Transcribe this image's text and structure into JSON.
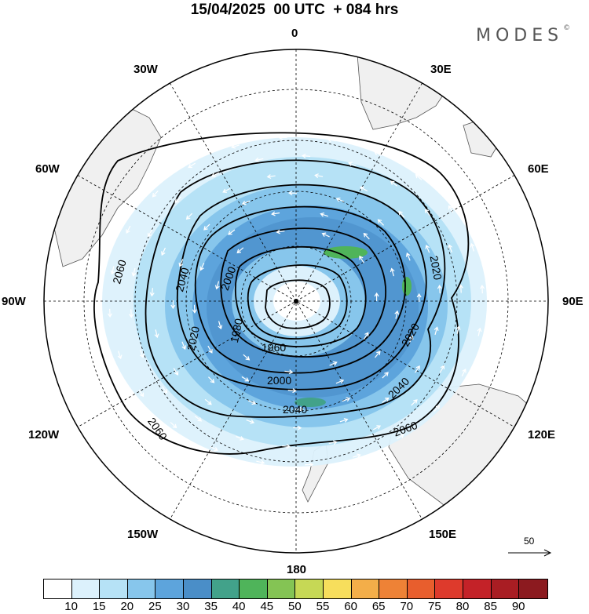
{
  "header": {
    "title": "15/04/2025  00 UTC  + 084 hrs",
    "brand": "MODES",
    "brand_mark": "©"
  },
  "map": {
    "projection": "polar-stereographic-south",
    "longitude_labels": {
      "top": "0",
      "top_right_1": "30E",
      "top_right_2": "60E",
      "right": "90E",
      "bottom_right_1": "120E",
      "bottom_right_2": "150E",
      "bottom": "180",
      "bottom_left_2": "150W",
      "bottom_left_1": "120W",
      "left": "90W",
      "top_left_2": "60W",
      "top_left_1": "30W"
    },
    "contour_labels": [
      "2060",
      "2040",
      "2000",
      "1980",
      "1960",
      "2000",
      "2020",
      "2040",
      "2060",
      "2020",
      "2060",
      "2040",
      "2020"
    ],
    "contour_interval_note": "",
    "reference_vector_label": "50",
    "colors": {
      "land": "#f0f0f0",
      "coast": "#555555",
      "contour": "#000000",
      "grid": "#000000",
      "arrows": "#ffffff"
    }
  },
  "colorbar": {
    "ticks": [
      "10",
      "15",
      "20",
      "25",
      "30",
      "35",
      "40",
      "45",
      "50",
      "55",
      "60",
      "65",
      "70",
      "75",
      "80",
      "85",
      "90"
    ],
    "colors": [
      "#ffffff",
      "#dcf1fc",
      "#b6e2f6",
      "#87c6ec",
      "#5da4dc",
      "#4a8ec8",
      "#42a28a",
      "#4fb45a",
      "#84c454",
      "#c6d855",
      "#f7de5c",
      "#f3ae49",
      "#ee8236",
      "#e85e2d",
      "#de3a2c",
      "#c42228",
      "#a91d23",
      "#8c1a1f"
    ]
  }
}
